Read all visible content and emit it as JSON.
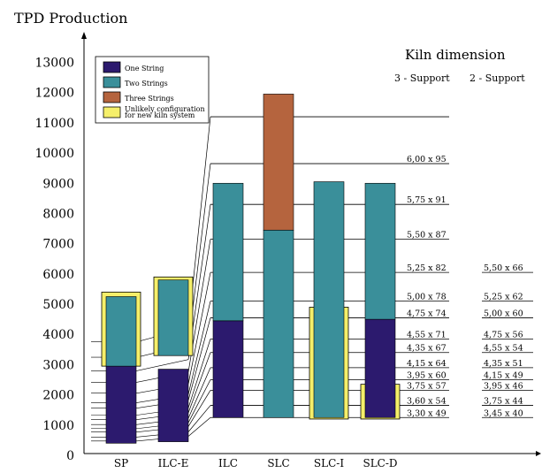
{
  "chart_data": {
    "type": "bar",
    "title": "TPD Production",
    "subtitle": "Kiln dimension",
    "column_headers": [
      "3 - Support",
      "2 - Support"
    ],
    "categories": [
      "SP",
      "ILC-E",
      "ILC",
      "SLC",
      "SLC-I",
      "SLC-D"
    ],
    "ylim": [
      0,
      13000
    ],
    "yticks": [
      0,
      1000,
      2000,
      3000,
      4000,
      5000,
      6000,
      7000,
      8000,
      9000,
      10000,
      11000,
      12000,
      13000
    ],
    "legend": [
      {
        "key": "one",
        "label": "One String",
        "color": "#2c1a6e"
      },
      {
        "key": "two",
        "label": "Two Strings",
        "color": "#3a8f9a"
      },
      {
        "key": "three",
        "label": "Three Strings",
        "color": "#b5643e"
      },
      {
        "key": "unlikely",
        "label": "Unlikely configuration",
        "label2": "for new kiln system",
        "color": "#f5ef6a"
      }
    ],
    "bars": [
      {
        "category": "SP",
        "segments": [
          {
            "key": "one",
            "from": 400,
            "to": 2950
          },
          {
            "key": "two",
            "from": 2950,
            "to": 5250
          }
        ],
        "unlikely": [
          {
            "from": 2950,
            "to": 5400
          }
        ]
      },
      {
        "category": "ILC-E",
        "segments": [
          {
            "key": "one",
            "from": 450,
            "to": 2850
          },
          {
            "key": "two",
            "from": 3300,
            "to": 5800
          }
        ],
        "unlikely": [
          {
            "from": 3300,
            "to": 5900
          }
        ]
      },
      {
        "category": "ILC",
        "segments": [
          {
            "key": "one",
            "from": 1250,
            "to": 4450
          },
          {
            "key": "two",
            "from": 4450,
            "to": 9000
          }
        ]
      },
      {
        "category": "SLC",
        "segments": [
          {
            "key": "two",
            "from": 1250,
            "to": 7450
          },
          {
            "key": "three",
            "from": 7450,
            "to": 11950
          }
        ]
      },
      {
        "category": "SLC-I",
        "segments": [
          {
            "key": "two",
            "from": 1250,
            "to": 9050
          }
        ],
        "unlikely": [
          {
            "from": 1200,
            "to": 4900
          }
        ]
      },
      {
        "category": "SLC-D",
        "segments": [
          {
            "key": "one",
            "from": 1250,
            "to": 4500
          },
          {
            "key": "two",
            "from": 4500,
            "to": 9000
          }
        ],
        "unlikely": [
          {
            "from": 1200,
            "to": 2350
          }
        ]
      }
    ],
    "dimensions": [
      {
        "value": 11200,
        "support3": "",
        "support2": ""
      },
      {
        "value": 9650,
        "support3": "6,00 x 95",
        "support2": ""
      },
      {
        "value": 8300,
        "support3": "5,75 x 91",
        "support2": ""
      },
      {
        "value": 7150,
        "support3": "5,50 x 87",
        "support2": ""
      },
      {
        "value": 6050,
        "support3": "5,25 x 82",
        "support2": "5,50 x 66"
      },
      {
        "value": 5100,
        "support3": "5,00 x 78",
        "support2": "5,25 x 62"
      },
      {
        "value": 4550,
        "support3": "4,75 x 74",
        "support2": "5,00 x 60"
      },
      {
        "value": 3850,
        "support3": "4,55 x 71",
        "support2": "4,75 x 56"
      },
      {
        "value": 3400,
        "support3": "4,35 x 67",
        "support2": "4,55 x 54"
      },
      {
        "value": 2900,
        "support3": "4,15 x 64",
        "support2": "4,35 x 51"
      },
      {
        "value": 2500,
        "support3": "3,95 x 60",
        "support2": "4,15 x 49"
      },
      {
        "value": 2150,
        "support3": "3,75 x 57",
        "support2": "3,95 x 46"
      },
      {
        "value": 1650,
        "support3": "3,60 x 54",
        "support2": "3,75 x 44"
      },
      {
        "value": 1250,
        "support3": "3,30 x 49",
        "support2": "3,45 x 40"
      }
    ]
  }
}
